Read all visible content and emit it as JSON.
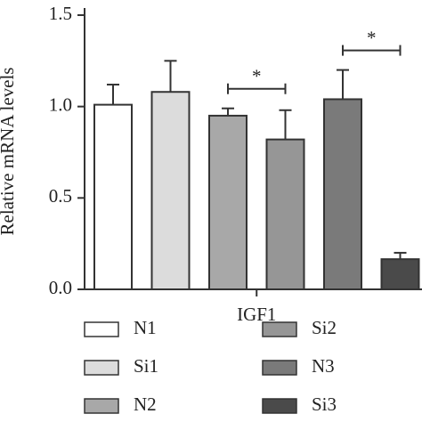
{
  "chart_data": {
    "type": "bar",
    "y_label": "Relative mRNA levels",
    "categories": [
      "IGF1"
    ],
    "series": [
      {
        "name": "N1",
        "color": "#ffffff",
        "values": [
          1.01
        ],
        "errors": [
          0.11
        ]
      },
      {
        "name": "Si1",
        "color": "#dcdcdc",
        "values": [
          1.08
        ],
        "errors": [
          0.17
        ]
      },
      {
        "name": "N2",
        "color": "#a8a8a8",
        "values": [
          0.95
        ],
        "errors": [
          0.04
        ]
      },
      {
        "name": "Si2",
        "color": "#969696",
        "values": [
          0.82
        ],
        "errors": [
          0.16
        ]
      },
      {
        "name": "N3",
        "color": "#7a7a7a",
        "values": [
          1.04
        ],
        "errors": [
          0.16
        ]
      },
      {
        "name": "Si3",
        "color": "#4a4a4a",
        "values": [
          0.165
        ],
        "errors": [
          0.035
        ]
      }
    ],
    "annotations": [
      {
        "text": "*",
        "from": 2,
        "to": 3
      },
      {
        "text": "*",
        "from": 4,
        "to": 5
      }
    ],
    "ylim": [
      0,
      1.5
    ],
    "yticks": [
      {
        "value": 0,
        "label": "0.0"
      },
      0.5,
      {
        "value": 1,
        "label": "1.0"
      },
      1.5
    ]
  }
}
